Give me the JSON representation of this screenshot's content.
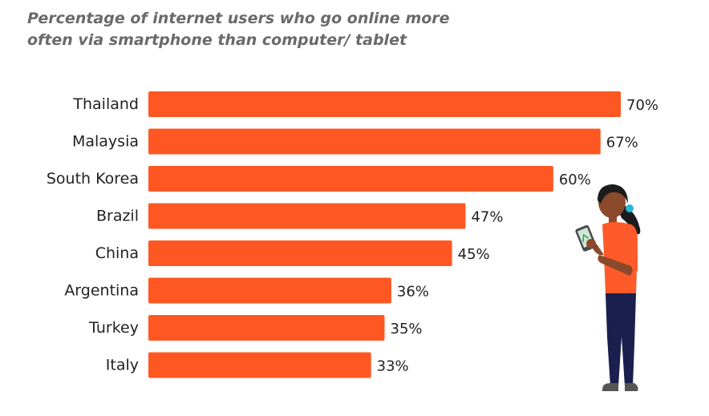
{
  "chart_data": {
    "type": "bar",
    "orientation": "horizontal",
    "title": "Percentage of internet users who go online more often via smartphone than computer/ tablet",
    "categories": [
      "Thailand",
      "Malaysia",
      "South Korea",
      "Brazil",
      "China",
      "Argentina",
      "Turkey",
      "Italy"
    ],
    "values": [
      70,
      67,
      60,
      47,
      45,
      36,
      35,
      33
    ],
    "value_labels": [
      "70%",
      "67%",
      "60%",
      "47%",
      "45%",
      "36%",
      "35%",
      "33%"
    ],
    "unit": "%",
    "xlim": [
      0,
      70
    ],
    "grid": false,
    "legend": "none",
    "bar_color": "#ff5722"
  },
  "illustration": {
    "icon": "woman-with-smartphone-icon",
    "colors": {
      "shirt": "#ff5a2a",
      "pants": "#1a1f4d",
      "skin": "#8b4a2b",
      "hair": "#1c1c1c",
      "hair_clip": "#2bb5d8"
    }
  }
}
